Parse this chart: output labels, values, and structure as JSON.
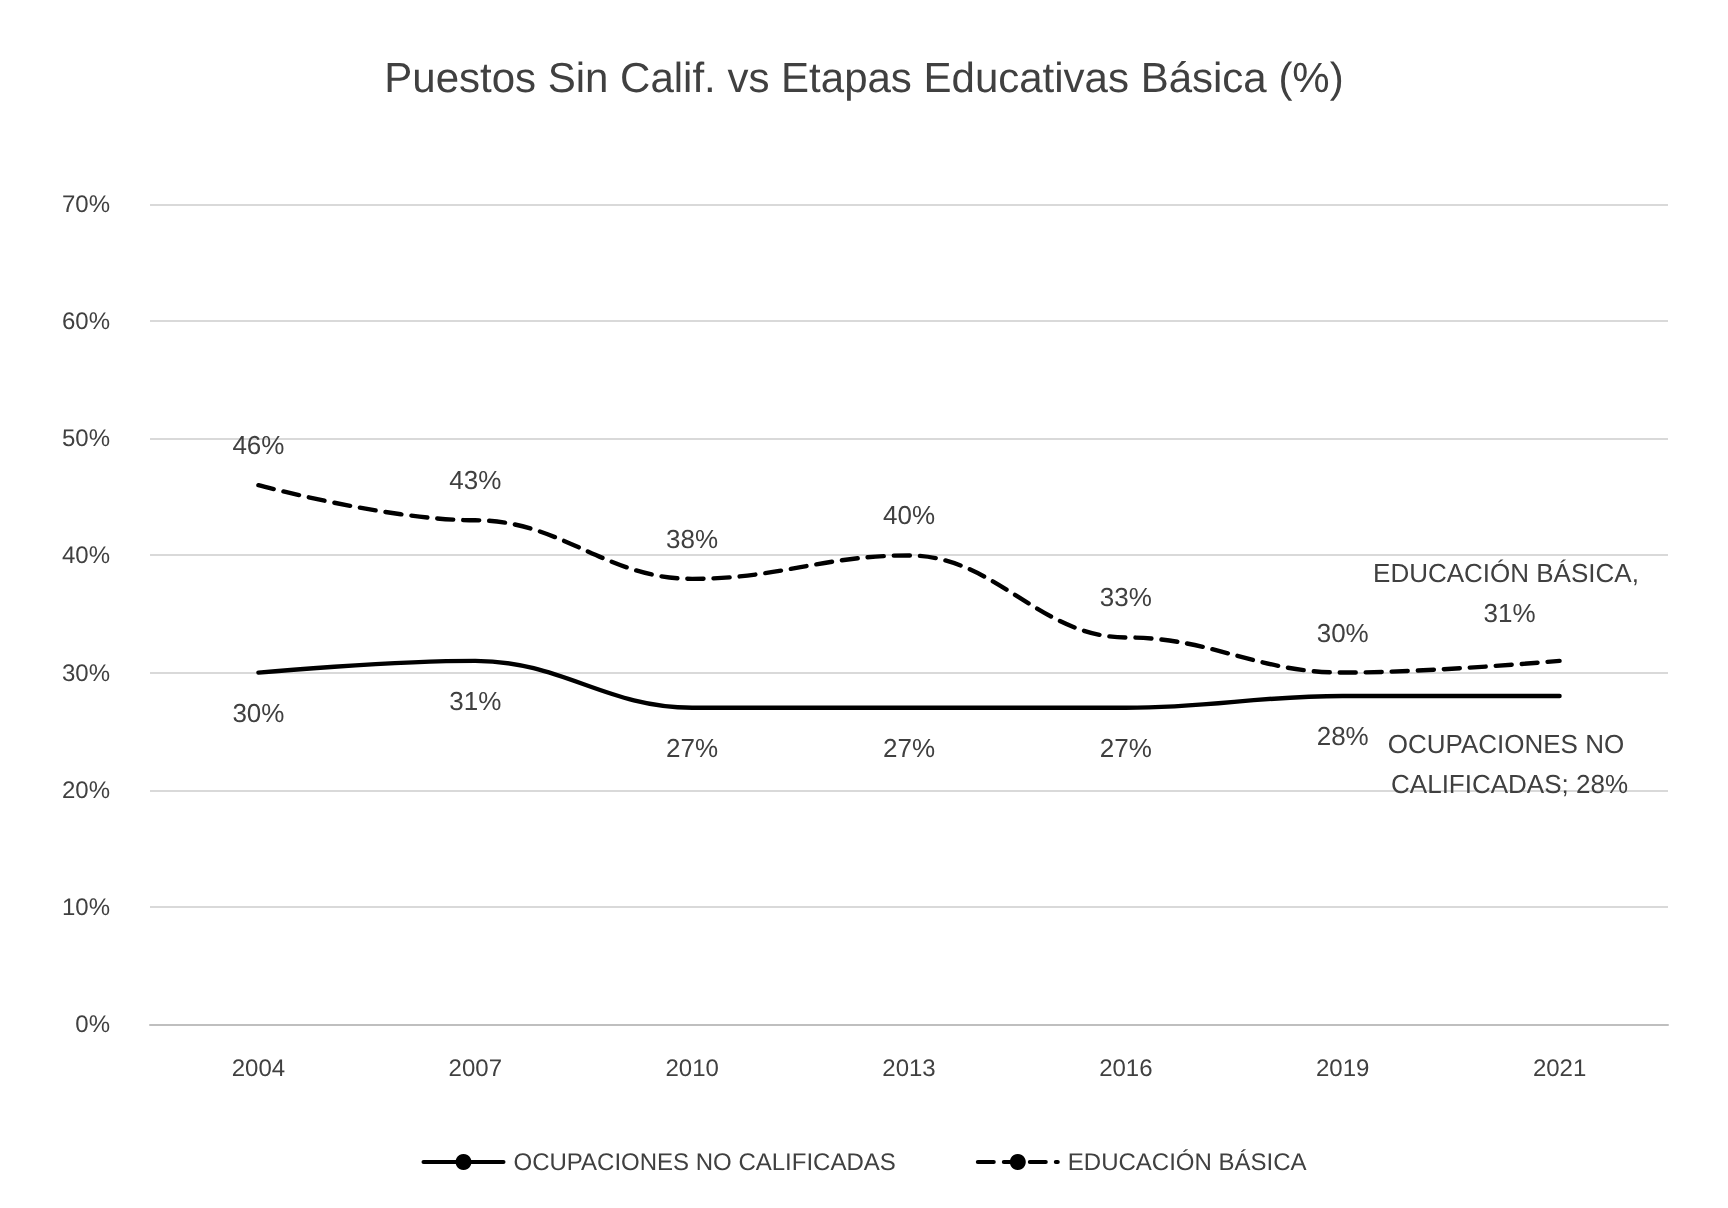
{
  "chart_data": {
    "type": "line",
    "title": "Puestos Sin Calif. vs Etapas Educativas Básica (%)",
    "categories": [
      "2004",
      "2007",
      "2010",
      "2013",
      "2016",
      "2019",
      "2021"
    ],
    "series": [
      {
        "name": "OCUPACIONES NO CALIFICADAS",
        "color": "#000000",
        "line_style": "solid",
        "values": [
          30,
          31,
          27,
          27,
          27,
          28,
          28
        ],
        "value_labels": [
          "30%",
          "31%",
          "27%",
          "27%",
          "27%",
          "28%",
          "OCUPACIONES NO CALIFICADAS; 28%"
        ]
      },
      {
        "name": "EDUCACIÓN BÁSICA",
        "color": "#000000",
        "line_style": "dashed",
        "values": [
          46,
          43,
          38,
          40,
          33,
          30,
          31
        ],
        "value_labels": [
          "46%",
          "43%",
          "38%",
          "40%",
          "33%",
          "30%",
          "EDUCACIÓN BÁSICA, 31%"
        ]
      }
    ],
    "ylim": [
      0,
      70
    ],
    "yticks": [
      {
        "value": 0,
        "label": "0%"
      },
      {
        "value": 10,
        "label": "10%"
      },
      {
        "value": 20,
        "label": "20%"
      },
      {
        "value": 30,
        "label": "30%"
      },
      {
        "value": 40,
        "label": "40%"
      },
      {
        "value": 50,
        "label": "50%"
      },
      {
        "value": 60,
        "label": "60%"
      },
      {
        "value": 70,
        "label": "70%"
      }
    ],
    "grid": "y",
    "legend": "bottom",
    "marker": "none"
  }
}
